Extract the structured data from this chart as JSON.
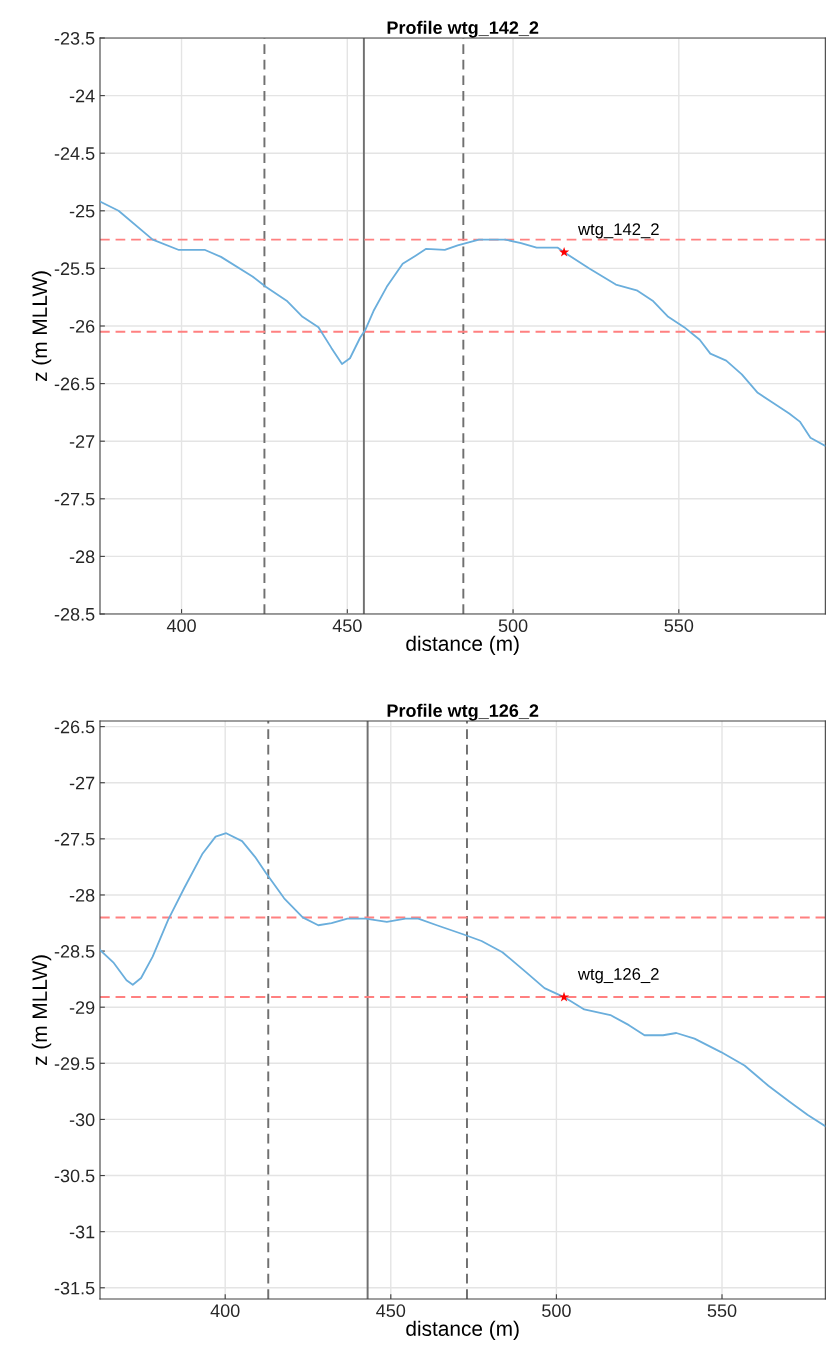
{
  "chart_data": [
    {
      "type": "line",
      "title": "Profile wtg_142_2",
      "xlabel": "distance (m)",
      "ylabel": "z (m MLLW)",
      "xlim": [
        375.4,
        594.2
      ],
      "ylim": [
        -28.5,
        -23.5
      ],
      "xticks": [
        400,
        450,
        500,
        550
      ],
      "yticks": [
        -28.5,
        -28,
        -27.5,
        -27,
        -26.5,
        -26,
        -25.5,
        -25,
        -24.5,
        -24,
        -23.5
      ],
      "grid": true,
      "legend": false,
      "series": [
        {
          "color": "#6aaedc",
          "x": [
            375.4,
            381,
            391.3,
            399.2,
            407.1,
            411.9,
            421.4,
            425.4,
            431.7,
            436.5,
            441.3,
            445.2,
            448.4,
            450.8,
            453.9,
            455.5,
            457.9,
            461.9,
            466.7,
            470.6,
            473.8,
            479.4,
            483.3,
            489.7,
            497.6,
            502.4,
            507.1,
            513.5,
            515.4,
            523,
            531,
            537.3,
            542.1,
            546.8,
            551.6,
            556.3,
            559.5,
            564.3,
            569,
            573.8,
            578.6,
            583.3,
            586.5,
            589.7,
            594.1
          ],
          "values": [
            -24.92,
            -25.0,
            -25.25,
            -25.34,
            -25.34,
            -25.4,
            -25.57,
            -25.66,
            -25.78,
            -25.92,
            -26.01,
            -26.19,
            -26.33,
            -26.28,
            -26.1,
            -26.03,
            -25.87,
            -25.66,
            -25.46,
            -25.39,
            -25.33,
            -25.34,
            -25.3,
            -25.25,
            -25.25,
            -25.28,
            -25.32,
            -25.32,
            -25.36,
            -25.5,
            -25.64,
            -25.69,
            -25.78,
            -25.92,
            -26.01,
            -26.12,
            -26.24,
            -26.3,
            -26.42,
            -26.58,
            -26.67,
            -26.76,
            -26.83,
            -26.97,
            -27.04
          ]
        },
        {
          "type": "scatter",
          "name": "wtg_142_2",
          "color": "#ff0000",
          "marker": "star",
          "x": [
            515.4
          ],
          "values": [
            -25.36
          ]
        }
      ],
      "ref_lines": [
        {
          "axis": "x",
          "value": 425,
          "color": "#707070",
          "line_style": "dashed"
        },
        {
          "axis": "x",
          "value": 455,
          "color": "#707070",
          "line_style": "solid"
        },
        {
          "axis": "x",
          "value": 485,
          "color": "#707070",
          "line_style": "dashed"
        },
        {
          "axis": "y",
          "value": -25.25,
          "color": "#ff8080",
          "line_style": "dashed"
        },
        {
          "axis": "y",
          "value": -26.05,
          "color": "#ff8080",
          "line_style": "dashed"
        }
      ]
    },
    {
      "type": "line",
      "title": "Profile wtg_126_2",
      "xlabel": "distance (m)",
      "ylabel": "z (m MLLW)",
      "xlim": [
        362.2,
        581.2
      ],
      "ylim": [
        -31.6,
        -26.45
      ],
      "xticks": [
        400,
        450,
        500,
        550
      ],
      "yticks": [
        -31.5,
        -31,
        -30.5,
        -30,
        -29.5,
        -29,
        -28.5,
        -28,
        -27.5,
        -27,
        -26.5
      ],
      "grid": true,
      "legend": false,
      "series": [
        {
          "color": "#6aaedc",
          "x": [
            362.2,
            366.2,
            370.2,
            372.1,
            374.6,
            378.1,
            382.8,
            387.6,
            393.2,
            397.1,
            400.3,
            405.1,
            409,
            412.2,
            417.8,
            423.4,
            428.1,
            432.1,
            436.9,
            442.4,
            448.8,
            454.4,
            458.3,
            463.9,
            471.8,
            477.4,
            483.7,
            490.9,
            496.4,
            502.3,
            508.4,
            516.3,
            521.9,
            526.6,
            532.2,
            536.2,
            541.7,
            549.7,
            556.8,
            564,
            570.3,
            575.9,
            581.2
          ],
          "values": [
            -28.49,
            -28.6,
            -28.76,
            -28.8,
            -28.74,
            -28.55,
            -28.22,
            -27.94,
            -27.63,
            -27.48,
            -27.45,
            -27.52,
            -27.66,
            -27.8,
            -28.03,
            -28.2,
            -28.27,
            -28.25,
            -28.21,
            -28.21,
            -28.24,
            -28.21,
            -28.21,
            -28.27,
            -28.35,
            -28.41,
            -28.51,
            -28.69,
            -28.83,
            -28.91,
            -29.02,
            -29.07,
            -29.16,
            -29.25,
            -29.25,
            -29.23,
            -29.28,
            -29.4,
            -29.52,
            -29.7,
            -29.84,
            -29.96,
            -30.06
          ]
        },
        {
          "type": "scatter",
          "name": "wtg_126_2",
          "color": "#ff0000",
          "marker": "star",
          "x": [
            502.3
          ],
          "values": [
            -28.91
          ]
        }
      ],
      "ref_lines": [
        {
          "axis": "x",
          "value": 413,
          "color": "#707070",
          "line_style": "dashed"
        },
        {
          "axis": "x",
          "value": 443,
          "color": "#707070",
          "line_style": "solid"
        },
        {
          "axis": "x",
          "value": 473,
          "color": "#707070",
          "line_style": "dashed"
        },
        {
          "axis": "y",
          "value": -28.2,
          "color": "#ff8080",
          "line_style": "dashed"
        },
        {
          "axis": "y",
          "value": -28.91,
          "color": "#ff8080",
          "line_style": "dashed"
        }
      ]
    }
  ]
}
